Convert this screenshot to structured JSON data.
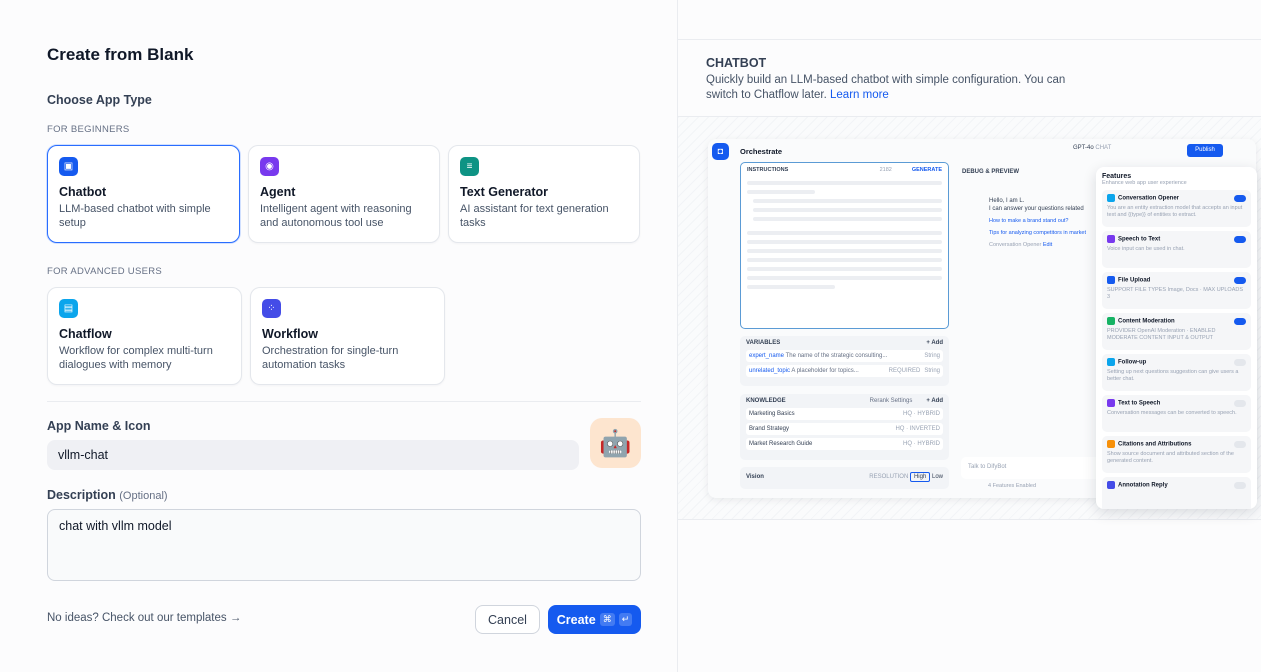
{
  "title": "Create from Blank",
  "choose_label": "Choose App Type",
  "beginners_label": "FOR BEGINNERS",
  "advanced_label": "FOR ADVANCED USERS",
  "app_types": [
    {
      "name": "Chatbot",
      "desc": "LLM-based chatbot with simple setup",
      "color": "#155aef",
      "icon": "chatbot-icon",
      "selected": true
    },
    {
      "name": "Agent",
      "desc": "Intelligent agent with reasoning and autonomous tool use",
      "color": "#7839ee",
      "icon": "agent-icon"
    },
    {
      "name": "Text Generator",
      "desc": "AI assistant for text generation tasks",
      "color": "#0e9384",
      "icon": "text-generator-icon"
    },
    {
      "name": "Chatflow",
      "desc": "Workflow for complex multi-turn dialogues with memory",
      "color": "#0ba5ec",
      "icon": "chatflow-icon"
    },
    {
      "name": "Workflow",
      "desc": "Orchestration for single-turn automation tasks",
      "color": "#444ce7",
      "icon": "workflow-icon"
    }
  ],
  "app_name_label": "App Name & Icon",
  "app_name_value": "vllm-chat",
  "app_icon": "🤖",
  "description_label": "Description",
  "description_optional": "(Optional)",
  "description_value": "chat with vllm model",
  "templates_link": "No ideas? Check out our templates →",
  "cancel": "Cancel",
  "create": "Create",
  "create_kbd": [
    "⌘",
    "↵"
  ],
  "info": {
    "title": "CHATBOT",
    "desc": "Quickly build an LLM-based chatbot with simple configuration. You can switch to Chatflow later.",
    "learn_more": "Learn more",
    "link_color": "#155aef"
  },
  "preview": {
    "header": "Orchestrate",
    "model": "GPT-4o",
    "model_tag": "CHAT",
    "publish": "Publish",
    "instructions": "INSTRUCTIONS",
    "char_count": "2182",
    "generate": "GENERATE",
    "variables": "VARIABLES",
    "add": "+ Add",
    "vars": [
      {
        "name": "expert_name",
        "desc": "The name of the strategic consulting...",
        "type": "String"
      },
      {
        "name": "unrelated_topic",
        "desc": "A placeholder for topics...",
        "badge": "REQUIRED",
        "type": "String"
      }
    ],
    "knowledge": "KNOWLEDGE",
    "rerank": "Rerank Settings",
    "docs": [
      {
        "name": "Marketing Basics",
        "tag": "HQ · HYBRID"
      },
      {
        "name": "Brand Strategy",
        "tag": "HQ · INVERTED"
      },
      {
        "name": "Market Research Guide",
        "tag": "HQ · HYBRID"
      }
    ],
    "vision": "Vision",
    "resolution": "RESOLUTION",
    "high": "High",
    "low": "Low",
    "debug": "DEBUG & PREVIEW",
    "greeting1": "Hello, I am L.",
    "greeting2": "I can answer your questions related",
    "q1": "How to make a brand stand out?",
    "q2": "Tips for analyzing competitors in market",
    "opener": "Conversation Opener",
    "edit": "Edit",
    "chat_placeholder": "Talk to DifyBot",
    "features_enabled": "4 Features Enabled",
    "features_title": "Features",
    "features_sub": "Enhance web app user experience",
    "features": [
      {
        "name": "Conversation Opener",
        "desc": "You are an entity extraction model that accepts an input text and {{type}} of entities to extract.",
        "on": true,
        "color": "#0ba5ec"
      },
      {
        "name": "Speech to Text",
        "desc": "Voice input can be used in chat.",
        "on": true,
        "color": "#7839ee"
      },
      {
        "name": "File Upload",
        "desc": "SUPPORT FILE TYPES Image, Docs · MAX UPLOADS 3",
        "on": true,
        "color": "#155aef"
      },
      {
        "name": "Content Moderation",
        "desc": "PROVIDER OpenAI Moderation · ENABLED MODERATE CONTENT INPUT & OUTPUT",
        "on": true,
        "color": "#16b364"
      },
      {
        "name": "Follow-up",
        "desc": "Setting up next questions suggestion can give users a better chat.",
        "on": false,
        "color": "#0ba5ec"
      },
      {
        "name": "Text to Speech",
        "desc": "Conversation messages can be converted to speech.",
        "on": false,
        "color": "#7839ee"
      },
      {
        "name": "Citations and Attributions",
        "desc": "Show source document and attributed section of the generated content.",
        "on": false,
        "color": "#f79009"
      },
      {
        "name": "Annotation Reply",
        "desc": "",
        "on": false,
        "color": "#444ce7"
      }
    ]
  }
}
